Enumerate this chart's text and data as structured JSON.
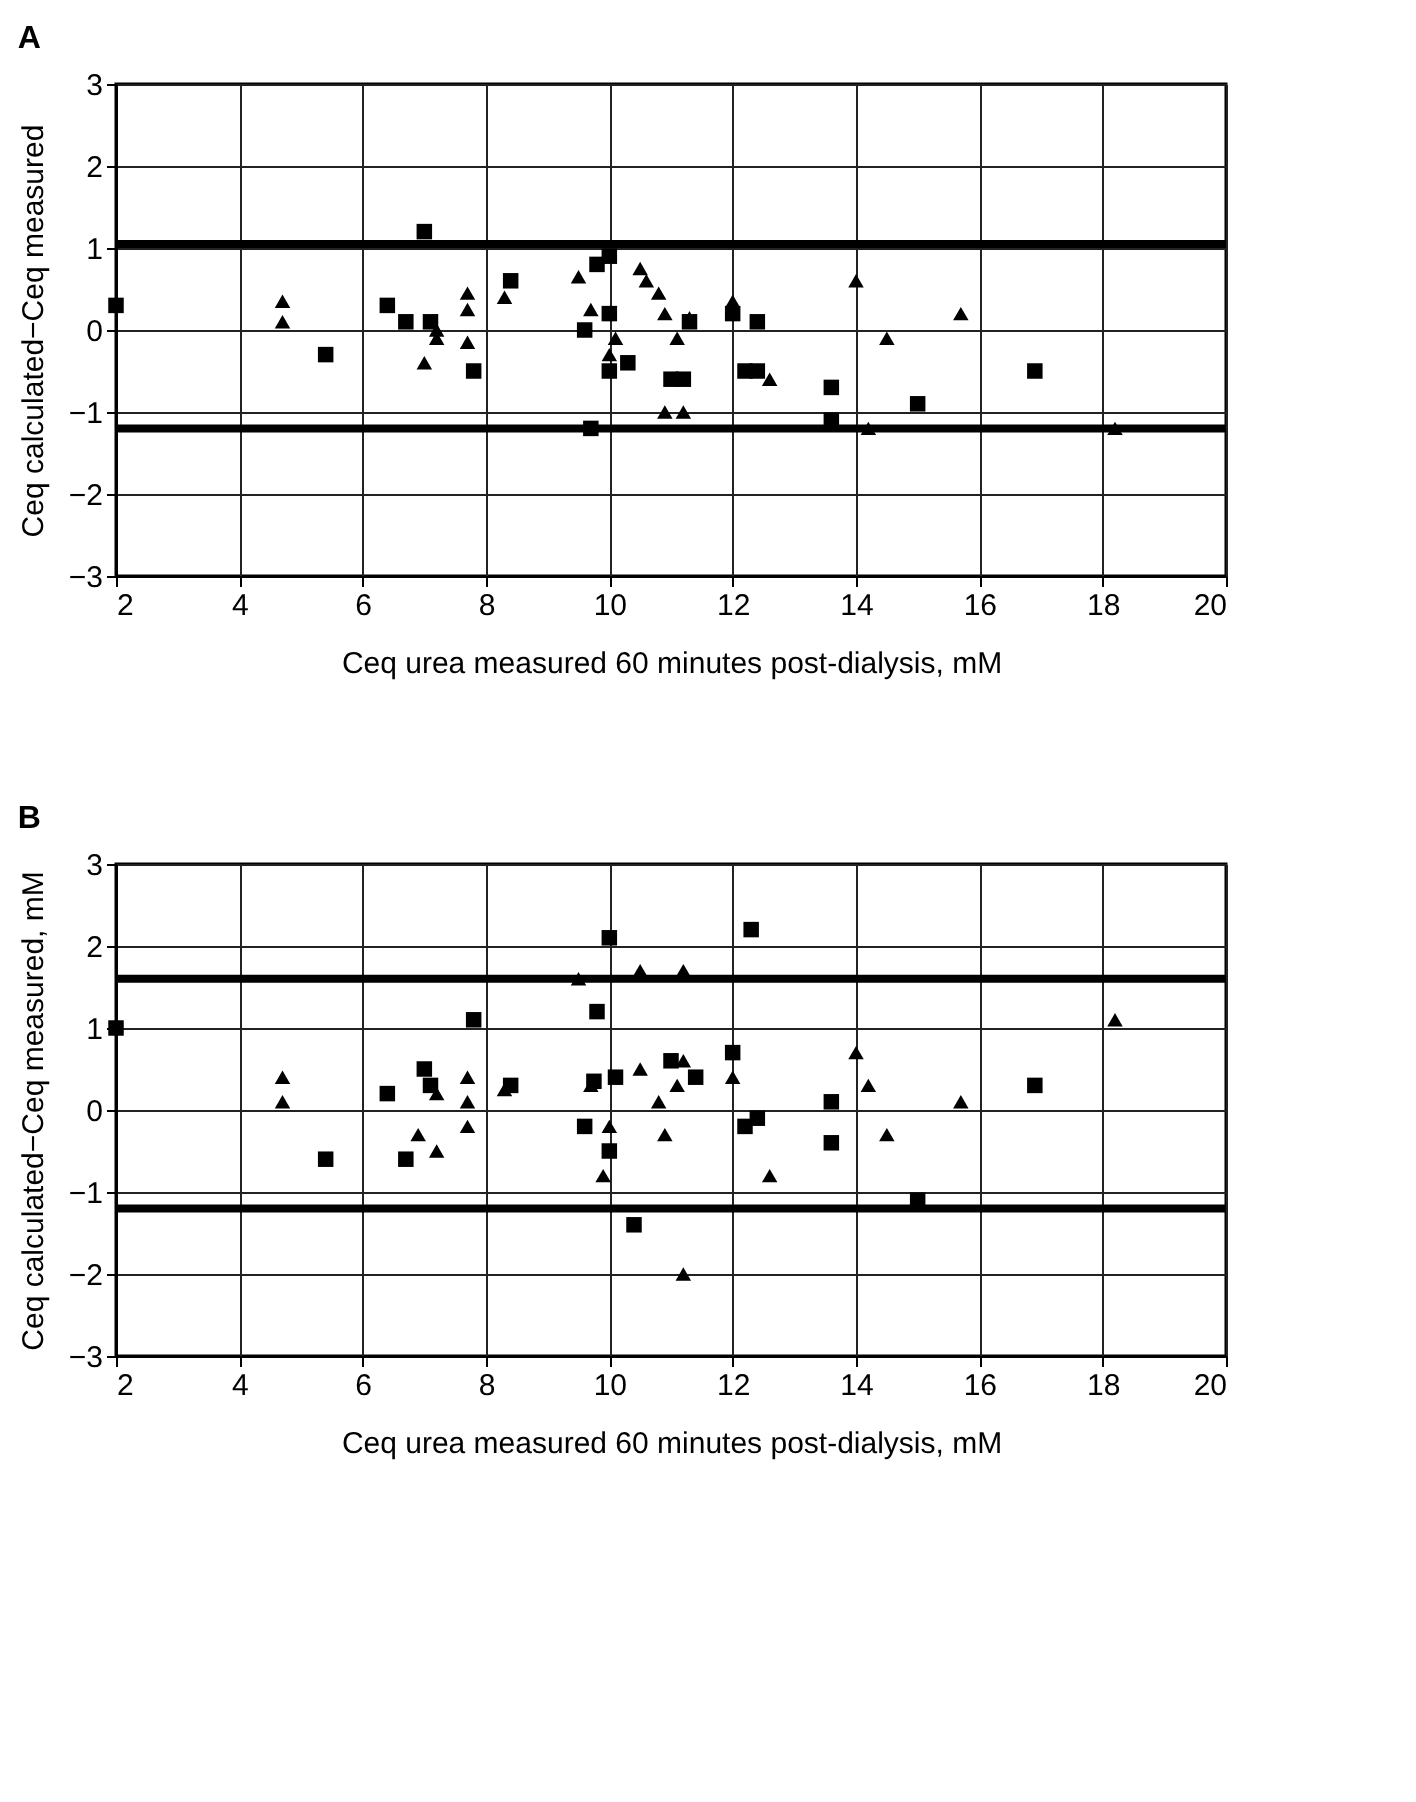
{
  "chart_data": [
    {
      "type": "scatter",
      "title": "A",
      "xlabel": "Ceq urea measured 60 minutes post-dialysis, mM",
      "ylabel": "Ceq calculated−Ceq measured",
      "xlim": [
        2,
        20
      ],
      "xticks": [
        2,
        4,
        6,
        8,
        10,
        12,
        14,
        16,
        18,
        20
      ],
      "ylim": [
        -3,
        3
      ],
      "yticks": [
        -3,
        -2,
        -1,
        0,
        1,
        2,
        3
      ],
      "grid": true,
      "series": [
        {
          "color": "#000000",
          "marker": "square",
          "x": [
            2.0,
            5.4,
            6.4,
            6.7,
            7.0,
            7.1,
            7.8,
            8.4,
            9.6,
            9.7,
            9.8,
            10.0,
            10.0,
            10.0,
            10.3,
            11.0,
            11.2,
            11.3,
            12.0,
            12.2,
            12.4,
            12.4,
            13.6,
            13.6,
            15.0,
            16.9
          ],
          "values": [
            0.3,
            -0.3,
            0.3,
            0.1,
            1.2,
            0.1,
            -0.5,
            0.6,
            0.0,
            -1.2,
            0.8,
            0.9,
            0.2,
            -0.5,
            -0.4,
            -0.6,
            -0.6,
            0.1,
            0.2,
            -0.5,
            -0.5,
            0.1,
            -0.7,
            -1.1,
            -0.9,
            -0.5
          ]
        },
        {
          "color": "#000000",
          "marker": "triangle",
          "x": [
            4.7,
            4.7,
            7.0,
            7.2,
            7.2,
            7.7,
            7.7,
            7.7,
            8.3,
            9.5,
            9.7,
            10.0,
            10.1,
            10.5,
            10.6,
            10.8,
            10.9,
            11.1,
            11.3,
            10.9,
            11.2,
            12.0,
            12.6,
            14.0,
            14.2,
            14.5,
            15.7,
            18.2
          ],
          "values": [
            0.35,
            0.1,
            -0.4,
            -0.1,
            0.0,
            0.45,
            0.25,
            -0.15,
            0.4,
            0.65,
            0.25,
            -0.3,
            -0.1,
            0.75,
            0.6,
            0.45,
            0.2,
            -0.1,
            0.15,
            -1.0,
            -1.0,
            0.35,
            -0.6,
            0.6,
            -1.2,
            -0.1,
            0.2,
            -1.2
          ]
        }
      ],
      "ref_lines": [
        {
          "axis": "y",
          "value": 1.05,
          "color": "#000000"
        },
        {
          "axis": "y",
          "value": -1.2,
          "color": "#000000"
        }
      ]
    },
    {
      "type": "scatter",
      "title": "B",
      "xlabel": "Ceq urea measured 60 minutes post-dialysis, mM",
      "ylabel": "Ceq calculated−Ceq measured, mM",
      "xlim": [
        2,
        20
      ],
      "xticks": [
        2,
        4,
        6,
        8,
        10,
        12,
        14,
        16,
        18,
        20
      ],
      "ylim": [
        -3,
        3
      ],
      "yticks": [
        -3,
        -2,
        -1,
        0,
        1,
        2,
        3
      ],
      "grid": true,
      "series": [
        {
          "color": "#000000",
          "marker": "square",
          "x": [
            2.0,
            5.4,
            6.4,
            6.7,
            7.0,
            7.1,
            7.8,
            8.4,
            9.6,
            9.75,
            9.8,
            10.0,
            10.0,
            10.1,
            10.4,
            11.0,
            11.4,
            12.0,
            12.2,
            12.3,
            12.4,
            13.6,
            13.6,
            15.0,
            16.9
          ],
          "values": [
            1.0,
            -0.6,
            0.2,
            -0.6,
            0.5,
            0.3,
            1.1,
            0.3,
            -0.2,
            0.35,
            1.2,
            2.1,
            -0.5,
            0.4,
            -1.4,
            0.6,
            0.4,
            0.7,
            -0.2,
            2.2,
            -0.1,
            0.1,
            -0.4,
            -1.1,
            0.3
          ]
        },
        {
          "color": "#000000",
          "marker": "triangle",
          "x": [
            4.7,
            4.7,
            6.9,
            7.2,
            7.2,
            7.7,
            7.7,
            7.7,
            8.3,
            9.5,
            9.7,
            10.0,
            9.9,
            10.5,
            10.5,
            11.2,
            10.8,
            10.9,
            11.1,
            11.2,
            11.2,
            12.0,
            12.6,
            14.0,
            14.2,
            14.5,
            15.7,
            18.2
          ],
          "values": [
            0.4,
            0.1,
            -0.3,
            -0.5,
            0.2,
            0.4,
            0.1,
            -0.2,
            0.25,
            1.6,
            0.3,
            -0.2,
            -0.8,
            1.7,
            0.5,
            1.7,
            0.1,
            -0.3,
            0.3,
            0.6,
            -2.0,
            0.4,
            -0.8,
            0.7,
            0.3,
            -0.3,
            0.1,
            1.1
          ]
        }
      ],
      "ref_lines": [
        {
          "axis": "y",
          "value": 1.6,
          "color": "#000000"
        },
        {
          "axis": "y",
          "value": -1.2,
          "color": "#000000"
        }
      ]
    }
  ]
}
